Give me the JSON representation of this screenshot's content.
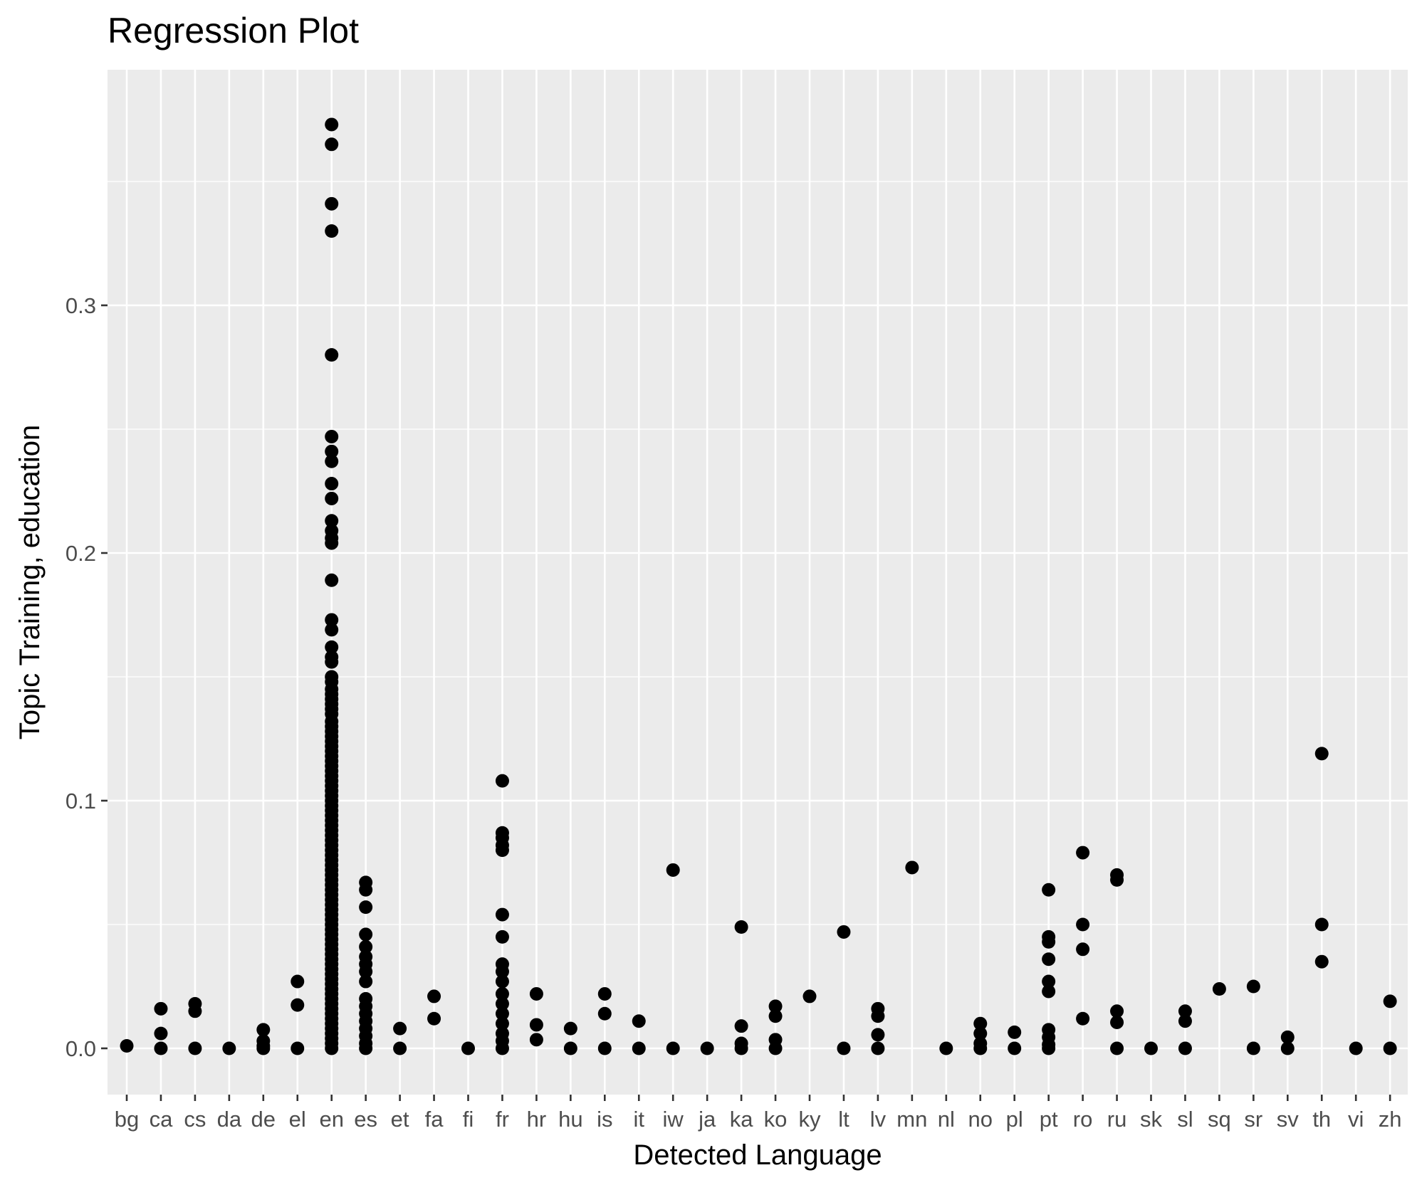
{
  "chart_data": {
    "type": "scatter",
    "title": "Regression Plot",
    "xlabel": "Detected Language",
    "ylabel": "Topic Training, education",
    "ylim": [
      -0.0185,
      0.3955
    ],
    "y_ticks": [
      {
        "value": 0.0,
        "label": "0.0"
      },
      {
        "value": 0.1,
        "label": "0.1"
      },
      {
        "value": 0.2,
        "label": "0.2"
      },
      {
        "value": 0.3,
        "label": "0.3"
      }
    ],
    "y_minor_ticks": [
      0.05,
      0.15,
      0.25,
      0.35
    ],
    "grid": true,
    "legend": "none",
    "colors": {
      "panel": "#ebebeb",
      "grid": "#ffffff",
      "point": "#000000",
      "tick": "#4d4d4d"
    },
    "categories": [
      "bg",
      "ca",
      "cs",
      "da",
      "de",
      "el",
      "en",
      "es",
      "et",
      "fa",
      "fi",
      "fr",
      "hr",
      "hu",
      "is",
      "it",
      "iw",
      "ja",
      "ka",
      "ko",
      "ky",
      "lt",
      "lv",
      "mn",
      "nl",
      "no",
      "pl",
      "pt",
      "ro",
      "ru",
      "sk",
      "sl",
      "sq",
      "sr",
      "sv",
      "th",
      "vi",
      "zh"
    ],
    "points": [
      {
        "x": "bg",
        "y": [
          0.001
        ]
      },
      {
        "x": "ca",
        "y": [
          0.016,
          0.006,
          0.0
        ]
      },
      {
        "x": "cs",
        "y": [
          0.018,
          0.015,
          0.0
        ]
      },
      {
        "x": "da",
        "y": [
          0.0
        ]
      },
      {
        "x": "de",
        "y": [
          0.0075,
          0.003,
          0.001,
          0.0
        ]
      },
      {
        "x": "el",
        "y": [
          0.027,
          0.0175,
          0.0
        ]
      },
      {
        "x": "en",
        "y": [
          0.373,
          0.365,
          0.341,
          0.33,
          0.28,
          0.247,
          0.241,
          0.237,
          0.228,
          0.222,
          0.213,
          0.209,
          0.206,
          0.204,
          0.189,
          0.173,
          0.169,
          0.162,
          0.158,
          0.156,
          0.15,
          0.148,
          0.145,
          0.143,
          0.141,
          0.139,
          0.137,
          0.135,
          0.132,
          0.13,
          0.128,
          0.126,
          0.124,
          0.122,
          0.12,
          0.118,
          0.116,
          0.114,
          0.112,
          0.11,
          0.108,
          0.106,
          0.104,
          0.102,
          0.1,
          0.098,
          0.096,
          0.094,
          0.092,
          0.09,
          0.088,
          0.086,
          0.084,
          0.082,
          0.08,
          0.078,
          0.076,
          0.074,
          0.072,
          0.07,
          0.068,
          0.066,
          0.064,
          0.062,
          0.06,
          0.058,
          0.056,
          0.054,
          0.052,
          0.05,
          0.048,
          0.046,
          0.044,
          0.042,
          0.04,
          0.038,
          0.036,
          0.034,
          0.032,
          0.03,
          0.028,
          0.026,
          0.024,
          0.022,
          0.02,
          0.018,
          0.016,
          0.014,
          0.012,
          0.01,
          0.008,
          0.006,
          0.004,
          0.002,
          0.0
        ]
      },
      {
        "x": "es",
        "y": [
          0.067,
          0.064,
          0.057,
          0.046,
          0.041,
          0.037,
          0.034,
          0.031,
          0.027,
          0.02,
          0.017,
          0.014,
          0.011,
          0.008,
          0.005,
          0.002,
          0.0
        ]
      },
      {
        "x": "et",
        "y": [
          0.008,
          0.0
        ]
      },
      {
        "x": "fa",
        "y": [
          0.021,
          0.012
        ]
      },
      {
        "x": "fi",
        "y": [
          0.0
        ]
      },
      {
        "x": "fr",
        "y": [
          0.108,
          0.087,
          0.085,
          0.082,
          0.08,
          0.054,
          0.045,
          0.034,
          0.031,
          0.027,
          0.022,
          0.018,
          0.014,
          0.01,
          0.006,
          0.003,
          0.0
        ]
      },
      {
        "x": "hr",
        "y": [
          0.022,
          0.0095,
          0.0035
        ]
      },
      {
        "x": "hu",
        "y": [
          0.008,
          0.0
        ]
      },
      {
        "x": "is",
        "y": [
          0.022,
          0.014,
          0.0
        ]
      },
      {
        "x": "it",
        "y": [
          0.011,
          0.0
        ]
      },
      {
        "x": "iw",
        "y": [
          0.072,
          0.0
        ]
      },
      {
        "x": "ja",
        "y": [
          0.0
        ]
      },
      {
        "x": "ka",
        "y": [
          0.049,
          0.009,
          0.002,
          0.0
        ]
      },
      {
        "x": "ko",
        "y": [
          0.017,
          0.013,
          0.0035,
          0.0
        ]
      },
      {
        "x": "ky",
        "y": [
          0.021
        ]
      },
      {
        "x": "lt",
        "y": [
          0.047,
          0.0
        ]
      },
      {
        "x": "lv",
        "y": [
          0.016,
          0.013,
          0.0055,
          0.0
        ]
      },
      {
        "x": "mn",
        "y": [
          0.073
        ]
      },
      {
        "x": "nl",
        "y": [
          0.0
        ]
      },
      {
        "x": "no",
        "y": [
          0.01,
          0.006,
          0.002,
          0.0
        ]
      },
      {
        "x": "pl",
        "y": [
          0.0065,
          0.0
        ]
      },
      {
        "x": "pt",
        "y": [
          0.064,
          0.045,
          0.043,
          0.036,
          0.027,
          0.023,
          0.0075,
          0.0045,
          0.0015,
          0.0
        ]
      },
      {
        "x": "ro",
        "y": [
          0.079,
          0.05,
          0.04,
          0.012
        ]
      },
      {
        "x": "ru",
        "y": [
          0.07,
          0.068,
          0.015,
          0.0105,
          0.0
        ]
      },
      {
        "x": "sk",
        "y": [
          0.0
        ]
      },
      {
        "x": "sl",
        "y": [
          0.015,
          0.011,
          0.0
        ]
      },
      {
        "x": "sq",
        "y": [
          0.024
        ]
      },
      {
        "x": "sr",
        "y": [
          0.025,
          0.0
        ]
      },
      {
        "x": "sv",
        "y": [
          0.0045,
          0.0
        ]
      },
      {
        "x": "th",
        "y": [
          0.119,
          0.05,
          0.035
        ]
      },
      {
        "x": "vi",
        "y": [
          0.0
        ]
      },
      {
        "x": "zh",
        "y": [
          0.019,
          0.0
        ]
      }
    ]
  }
}
